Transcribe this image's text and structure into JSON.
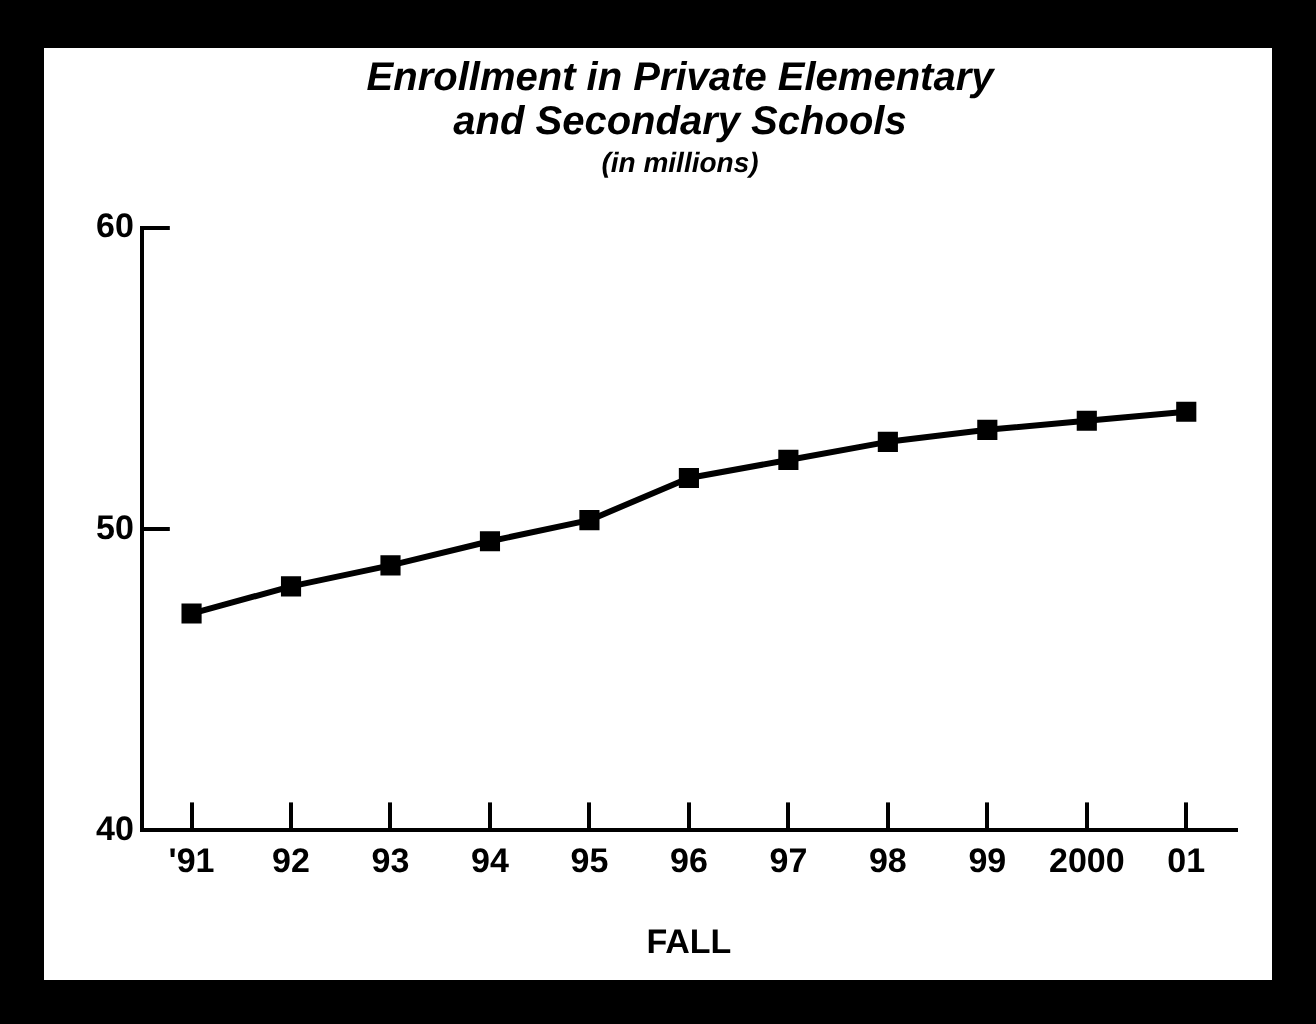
{
  "chart_data": {
    "type": "line",
    "title": "Enrollment in Private Elementary and Secondary Schools",
    "subtitle": "(in millions)",
    "xlabel": "FALL",
    "categories": [
      "'91",
      "92",
      "93",
      "94",
      "95",
      "96",
      "97",
      "98",
      "99",
      "2000",
      "01"
    ],
    "series": [
      {
        "color": "#000000",
        "values": [
          47.2,
          48.1,
          48.8,
          49.6,
          50.3,
          51.7,
          52.3,
          52.9,
          53.3,
          53.6,
          53.9
        ]
      }
    ],
    "ylim": [
      40,
      60
    ],
    "yticks": [
      40,
      50,
      60
    ],
    "grid": false,
    "legend": false,
    "marker": "square",
    "line_style": "solid"
  }
}
